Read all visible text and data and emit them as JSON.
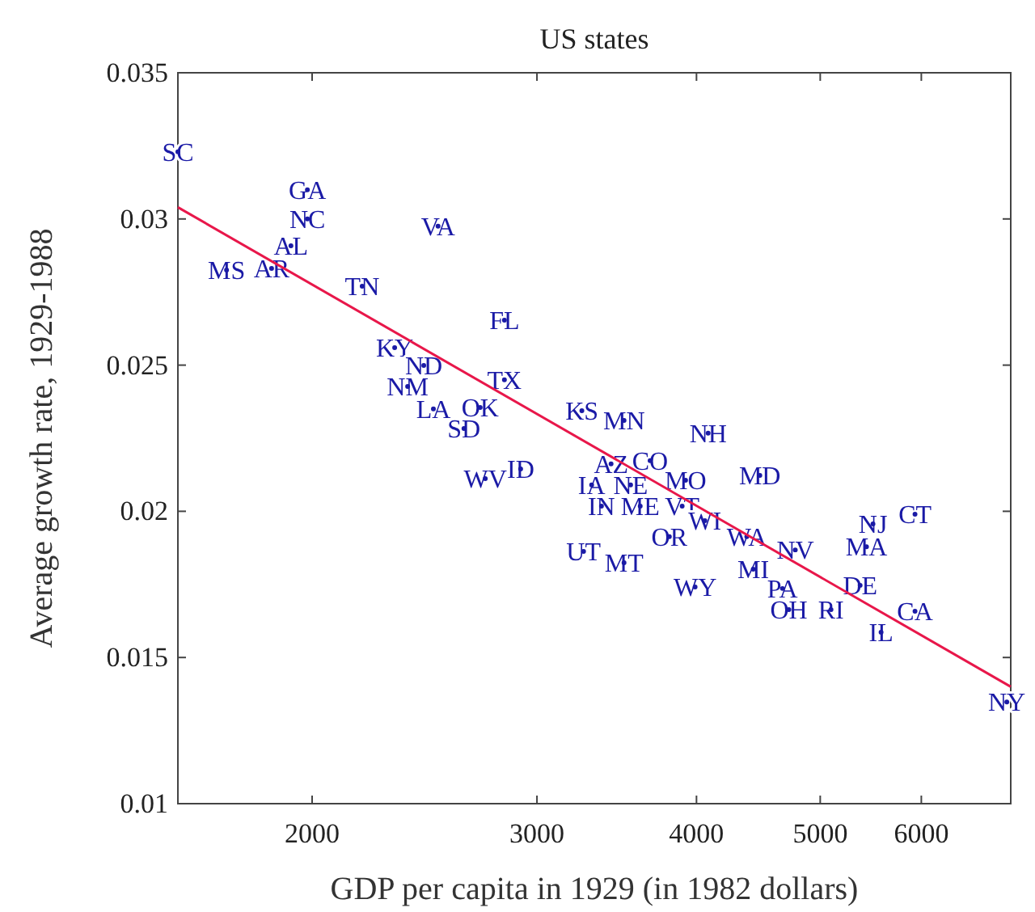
{
  "chart_data": {
    "type": "scatter",
    "title": "US states",
    "xlabel": "GDP per capita in 1929 (in 1982 dollars)",
    "ylabel": "Average growth rate, 1929-1988",
    "log": "x",
    "xlim": [
      1570,
      7050
    ],
    "xticks": [
      2000,
      3000,
      4000,
      5000,
      6000
    ],
    "ylim": [
      0.01,
      0.035
    ],
    "yticks": [
      0.01,
      0.015,
      0.02,
      0.025,
      0.03,
      0.035
    ],
    "grid": false,
    "series": [
      {
        "marker": "circle",
        "color": "#1a1aa6",
        "x": [
          1570,
          1983,
          1983,
          2510,
          1925,
          1859,
          1714,
          2189,
          2829,
          2321,
          2446,
          2376,
          2829,
          2489,
          2708,
          2630,
          2733,
          2913,
          3253,
          3510,
          4085,
          4484,
          3429,
          3679,
          3311,
          3552,
          3922,
          3370,
          3614,
          3898,
          4061,
          3809,
          4380,
          4780,
          4431,
          4671,
          4725,
          5098,
          5373,
          5932,
          5580,
          5499,
          5932,
          5435,
          7000,
          3263,
          3510,
          3990
        ],
        "values": [
          0.0323,
          0.031,
          0.03,
          0.02975,
          0.02908,
          0.02831,
          0.02825,
          0.0277,
          0.02654,
          0.0256,
          0.02499,
          0.02427,
          0.0245,
          0.0235,
          0.02355,
          0.02283,
          0.02112,
          0.02145,
          0.02344,
          0.02311,
          0.02267,
          0.02123,
          0.02162,
          0.02173,
          0.0209,
          0.0209,
          0.02106,
          0.02018,
          0.02018,
          0.02018,
          0.01968,
          0.01913,
          0.01913,
          0.01868,
          0.01802,
          0.01736,
          0.01664,
          0.01664,
          0.01747,
          0.01658,
          0.01586,
          0.01957,
          0.0199,
          0.01879,
          0.01348,
          0.01863,
          0.01824,
          0.01741
        ],
        "value_labels": [
          "SC",
          "GA",
          "NC",
          "VA",
          "AL",
          "AR",
          "MS",
          "TN",
          "FL",
          "KY",
          "ND",
          "NM",
          "TX",
          "LA",
          "OK",
          "SD",
          "WV",
          "ID",
          "KS",
          "MN",
          "NH",
          "MD",
          "AZ",
          "CO",
          "IA",
          "NE",
          "MO",
          "IN",
          "ME",
          "VT",
          "WI",
          "OR",
          "WA",
          "NV",
          "MI",
          "PA",
          "OH",
          "RI",
          "DE",
          "CA",
          "IL",
          "NJ",
          "CT",
          "MA",
          "NY",
          "UT",
          "MT",
          "WY"
        ]
      },
      {
        "type": "line",
        "color": "#e8174a",
        "x": [
          1570,
          7050
        ],
        "values": [
          0.0304,
          0.014
        ]
      }
    ]
  }
}
